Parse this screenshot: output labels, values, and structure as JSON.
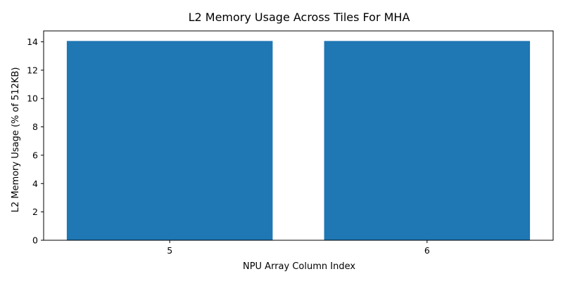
{
  "chart_data": {
    "type": "bar",
    "title": "L2 Memory Usage Across Tiles For MHA",
    "xlabel": "NPU Array Column Index",
    "ylabel": "L2 Memory Usage (% of 512KB)",
    "categories": [
      "5",
      "6"
    ],
    "values": [
      14.06,
      14.06
    ],
    "ylim": [
      0,
      14.77
    ],
    "yticks": [
      0,
      2,
      4,
      6,
      8,
      10,
      12,
      14
    ],
    "bar_color": "#1f77b4",
    "grid": false,
    "legend": "none"
  }
}
